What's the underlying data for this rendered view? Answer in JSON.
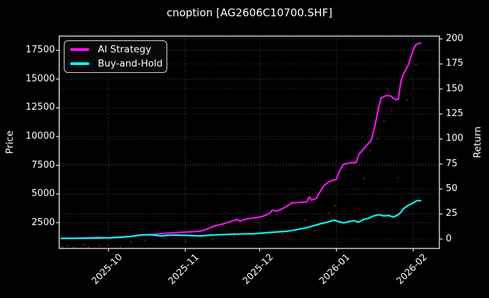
{
  "title": "cnoption [AG2606C10700.SHF]",
  "colors": {
    "background": "#000000",
    "foreground": "#ffffff",
    "grid": "#4d4d4d",
    "spine": "#ffffff",
    "ai_strategy": "#ee12ee",
    "buy_and_hold": "#10eded",
    "trade_dots": "#8b0000"
  },
  "legend": {
    "items": [
      {
        "label": "AI Strategy",
        "color_key": "ai_strategy"
      },
      {
        "label": "Buy-and-Hold",
        "color_key": "buy_and_hold"
      }
    ]
  },
  "axes": {
    "left": {
      "label": "Price",
      "ticks": [
        2500,
        5000,
        7500,
        10000,
        12500,
        15000,
        17500
      ]
    },
    "right": {
      "label": "Return",
      "ticks": [
        0,
        25,
        50,
        75,
        100,
        125,
        150,
        175,
        200
      ]
    },
    "x": {
      "ticks": [
        {
          "t": 0,
          "label": "2025-10"
        },
        {
          "t": 31,
          "label": "2025-11"
        },
        {
          "t": 61,
          "label": "2025-12"
        },
        {
          "t": 92,
          "label": "2026-01"
        },
        {
          "t": 123,
          "label": "2026-02"
        }
      ]
    }
  },
  "chart_data": {
    "type": "line",
    "title": "cnoption [AG2606C10700.SHF]",
    "xlabel": "",
    "x_unit": "days since 2025-10-01",
    "x_tick_labels": [
      "2025-10",
      "2025-11",
      "2025-12",
      "2026-01",
      "2026-02"
    ],
    "y_left_label": "Price",
    "y_left_range": [
      265,
      18740
    ],
    "y_right_label": "Return",
    "y_right_range": [
      -9.4,
      202.8
    ],
    "grid": true,
    "legend_position": "upper left",
    "series": [
      {
        "name": "AI Strategy",
        "axis": "right",
        "points": [
          [
            -19,
            0.5
          ],
          [
            -14,
            0.8
          ],
          [
            -9,
            1.2
          ],
          [
            -4,
            1.6
          ],
          [
            0,
            1.2
          ],
          [
            5,
            1.9
          ],
          [
            9,
            2.6
          ],
          [
            13,
            4.0
          ],
          [
            17,
            4.4
          ],
          [
            21,
            5.4
          ],
          [
            26,
            6.2
          ],
          [
            31,
            6.9
          ],
          [
            37,
            7.8
          ],
          [
            40,
            10.2
          ],
          [
            43,
            13.2
          ],
          [
            46,
            14.9
          ],
          [
            49,
            17.3
          ],
          [
            52,
            19.6
          ],
          [
            53,
            18.0
          ],
          [
            56,
            20.3
          ],
          [
            59,
            21.2
          ],
          [
            62,
            22.4
          ],
          [
            65,
            25.5
          ],
          [
            66,
            28.8
          ],
          [
            68,
            27.9
          ],
          [
            71,
            31.4
          ],
          [
            74,
            36.1
          ],
          [
            77,
            36.6
          ],
          [
            80,
            37.1
          ],
          [
            81,
            42.0
          ],
          [
            82,
            38.9
          ],
          [
            84,
            40.8
          ],
          [
            85,
            45.6
          ],
          [
            87,
            53.6
          ],
          [
            89,
            57.3
          ],
          [
            91,
            59.2
          ],
          [
            92,
            59.7
          ],
          [
            93,
            66.8
          ],
          [
            94,
            71.5
          ],
          [
            95,
            75.0
          ],
          [
            98,
            76.2
          ],
          [
            100,
            76.7
          ],
          [
            101,
            84.5
          ],
          [
            103,
            90.3
          ],
          [
            106,
            98.6
          ],
          [
            107,
            108.0
          ],
          [
            108,
            118.6
          ],
          [
            109,
            131.4
          ],
          [
            110,
            141.1
          ],
          [
            111,
            142.2
          ],
          [
            112,
            143.4
          ],
          [
            114,
            142.9
          ],
          [
            115,
            140.6
          ],
          [
            116,
            139.2
          ],
          [
            117,
            139.9
          ],
          [
            118,
            157.6
          ],
          [
            119,
            164.6
          ],
          [
            121,
            174.0
          ],
          [
            122,
            181.6
          ],
          [
            123,
            189.0
          ],
          [
            124,
            194.1
          ],
          [
            125,
            195.3
          ],
          [
            126,
            195.8
          ]
        ]
      },
      {
        "name": "Buy-and-Hold",
        "axis": "right",
        "points": [
          [
            -19,
            0.8
          ],
          [
            -14,
            0.7
          ],
          [
            -9,
            0.8
          ],
          [
            -4,
            1.0
          ],
          [
            0,
            1.2
          ],
          [
            5,
            1.8
          ],
          [
            9,
            2.6
          ],
          [
            13,
            4.0
          ],
          [
            17,
            4.4
          ],
          [
            21,
            3.1
          ],
          [
            26,
            4.0
          ],
          [
            31,
            3.7
          ],
          [
            37,
            3.1
          ],
          [
            42,
            4.0
          ],
          [
            48,
            4.7
          ],
          [
            54,
            5.1
          ],
          [
            59,
            5.4
          ],
          [
            66,
            6.7
          ],
          [
            72,
            7.8
          ],
          [
            75,
            9.0
          ],
          [
            80,
            11.3
          ],
          [
            85,
            14.9
          ],
          [
            89,
            17.3
          ],
          [
            91,
            18.9
          ],
          [
            93,
            17.3
          ],
          [
            95,
            16.1
          ],
          [
            97,
            17.5
          ],
          [
            99,
            18.4
          ],
          [
            101,
            16.8
          ],
          [
            103,
            19.6
          ],
          [
            105,
            20.8
          ],
          [
            107,
            23.1
          ],
          [
            109,
            24.3
          ],
          [
            111,
            23.1
          ],
          [
            113,
            23.6
          ],
          [
            115,
            21.9
          ],
          [
            117,
            24.5
          ],
          [
            118,
            26.7
          ],
          [
            119,
            30.2
          ],
          [
            121,
            33.7
          ],
          [
            123,
            36.1
          ],
          [
            124,
            37.8
          ],
          [
            125,
            38.5
          ],
          [
            126,
            38.3
          ]
        ]
      }
    ],
    "scatter": {
      "name": "trade-markers",
      "axis": "right",
      "points": [
        [
          -18.6,
          -8.0
        ],
        [
          -16.6,
          -6.6
        ],
        [
          -13.8,
          -8.7
        ],
        [
          -10.0,
          -5.9
        ],
        [
          -8.0,
          -8.0
        ],
        [
          -3.7,
          -6.6
        ],
        [
          -0.3,
          -5.9
        ],
        [
          4.9,
          -7.3
        ],
        [
          9.2,
          -3.0
        ],
        [
          14.9,
          -1.6
        ],
        [
          22.6,
          1.2
        ],
        [
          31.2,
          -2.3
        ],
        [
          42.1,
          -0.2
        ],
        [
          50.7,
          2.6
        ],
        [
          57.9,
          4.7
        ],
        [
          67.9,
          24.5
        ],
        [
          70.2,
          4.7
        ],
        [
          79.4,
          18.9
        ],
        [
          83.1,
          8.3
        ],
        [
          88.8,
          26.0
        ],
        [
          91.4,
          33.0
        ],
        [
          99.4,
          75.5
        ],
        [
          101.4,
          29.5
        ],
        [
          103.2,
          60.6
        ],
        [
          105.7,
          88.9
        ],
        [
          108.6,
          100.3
        ],
        [
          111.2,
          117.9
        ],
        [
          112.6,
          149.8
        ],
        [
          114.3,
          128.5
        ],
        [
          116.9,
          61.3
        ],
        [
          118.3,
          156.8
        ],
        [
          120.3,
          139.2
        ],
        [
          122.6,
          188.7
        ],
        [
          124.1,
          174.5
        ]
      ]
    }
  }
}
